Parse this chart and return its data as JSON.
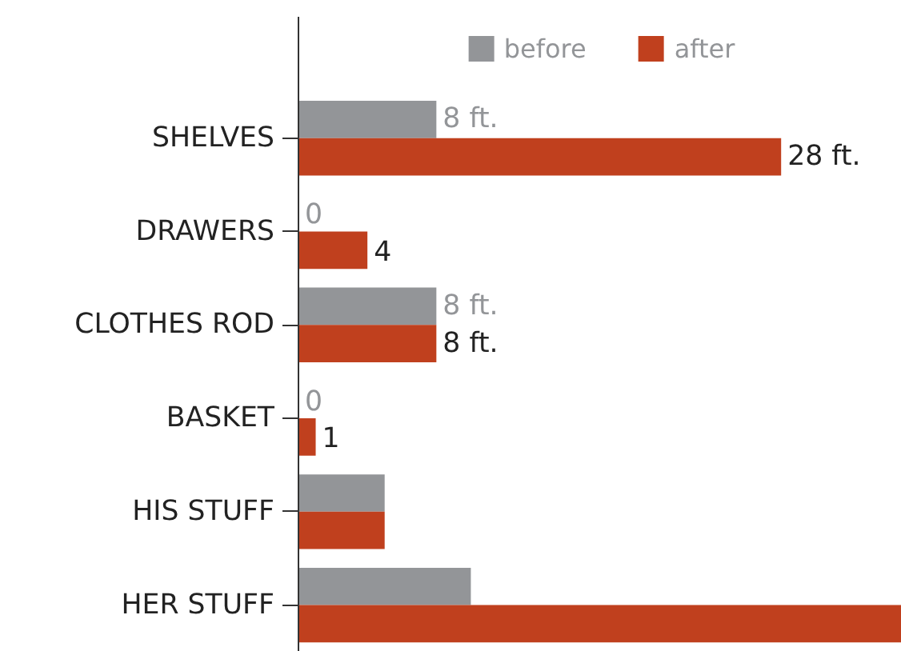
{
  "chart_data": {
    "type": "bar",
    "orientation": "horizontal",
    "legend": "top",
    "xlim": [
      0,
      35
    ],
    "categories": [
      "SHELVES",
      "DRAWERS",
      "CLOTHES ROD",
      "BASKET",
      "HIS STUFF",
      "HER STUFF"
    ],
    "series": [
      {
        "name": "before",
        "color": "#939598",
        "values": [
          8,
          0,
          8,
          0,
          5,
          10
        ],
        "value_labels": [
          "8 ft.",
          "0",
          "8 ft.",
          "0",
          null,
          null
        ]
      },
      {
        "name": "after",
        "color": "#c0401e",
        "values": [
          28,
          4,
          8,
          1,
          5,
          35
        ],
        "value_labels": [
          "28 ft.",
          "4",
          "8 ft.",
          "1",
          null,
          null
        ]
      }
    ]
  }
}
